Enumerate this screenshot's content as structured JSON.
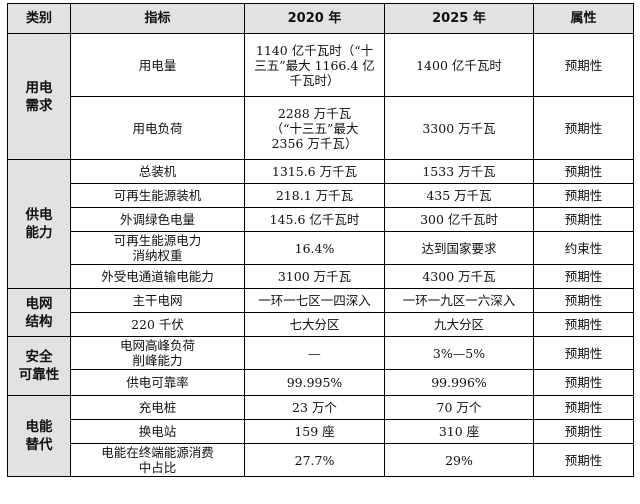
{
  "header": {
    "category": "类别",
    "indicator": "指标",
    "y2020": "2020 年",
    "y2025": "2025 年",
    "attribute": "属性"
  },
  "groups": [
    {
      "category": "用电\n需求",
      "rows": [
        {
          "indicator": "用电量",
          "y2020": "1140 亿千瓦时（“十\n三五”最大 1166.4 亿\n千瓦时）",
          "y2025": "1400 亿千瓦时",
          "attribute": "预期性"
        },
        {
          "indicator": "用电负荷",
          "y2020": "2288 万千瓦\n（“十三五”最大\n2356 万千瓦）",
          "y2025": "3300 万千瓦",
          "attribute": "预期性"
        }
      ]
    },
    {
      "category": "供电\n能力",
      "rows": [
        {
          "indicator": "总装机",
          "y2020": "1315.6 万千瓦",
          "y2025": "1533 万千瓦",
          "attribute": "预期性"
        },
        {
          "indicator": "可再生能源装机",
          "y2020": "218.1 万千瓦",
          "y2025": "435 万千瓦",
          "attribute": "预期性"
        },
        {
          "indicator": "外调绿色电量",
          "y2020": "145.6 亿千瓦时",
          "y2025": "300 亿千瓦时",
          "attribute": "预期性"
        },
        {
          "indicator": "可再生能源电力\n消纳权重",
          "y2020": "16.4%",
          "y2025": "达到国家要求",
          "attribute": "约束性"
        },
        {
          "indicator": "外受电通道输电能力",
          "y2020": "3100 万千瓦",
          "y2025": "4300 万千瓦",
          "attribute": "预期性"
        }
      ]
    },
    {
      "category": "电网\n结构",
      "rows": [
        {
          "indicator": "主干电网",
          "y2020": "一环一七区一四深入",
          "y2025": "一环一九区一六深入",
          "attribute": "预期性"
        },
        {
          "indicator": "220 千伏",
          "y2020": "七大分区",
          "y2025": "九大分区",
          "attribute": "预期性"
        }
      ]
    },
    {
      "category": "安全\n可靠性",
      "rows": [
        {
          "indicator": "电网高峰负荷\n削峰能力",
          "y2020": "—",
          "y2025": "3%—5%",
          "attribute": "预期性"
        },
        {
          "indicator": "供电可靠率",
          "y2020": "99.995%",
          "y2025": "99.996%",
          "attribute": "预期性"
        }
      ]
    },
    {
      "category": "电能\n替代",
      "rows": [
        {
          "indicator": "充电桩",
          "y2020": "23 万个",
          "y2025": "70 万个",
          "attribute": "预期性"
        },
        {
          "indicator": "换电站",
          "y2020": "159 座",
          "y2025": "310 座",
          "attribute": "预期性"
        },
        {
          "indicator": "电能在终端能源消费\n中占比",
          "y2020": "27.7%",
          "y2025": "29%",
          "attribute": "预期性"
        }
      ]
    }
  ]
}
